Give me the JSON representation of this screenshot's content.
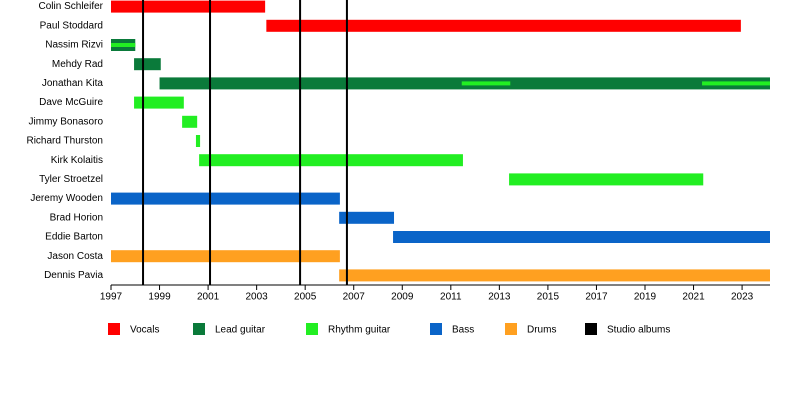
{
  "chart_data": {
    "type": "timeline",
    "categories": [
      "Colin Schleifer",
      "Paul Stoddard",
      "Nassim Rizvi",
      "Mehdy Rad",
      "Jonathan Kita",
      "Dave McGuire",
      "Jimmy Bonasoro",
      "Richard Thurston",
      "Kirk Kolaitis",
      "Tyler Stroetzel",
      "Jeremy Wooden",
      "Brad Horion",
      "Eddie Barton",
      "Jason Costa",
      "Dennis Pavia"
    ],
    "series": [
      {
        "name": "Vocals",
        "color": "#ff0000",
        "values": [
          [
            [
              1997,
              2003.35
            ]
          ],
          [
            [
              2003.4,
              2022.95
            ]
          ],
          null,
          null,
          null,
          null,
          null,
          null,
          null,
          null,
          null,
          null,
          null,
          null,
          null
        ]
      },
      {
        "name": "Lead guitar",
        "color": "#0a7a3a",
        "values": [
          null,
          null,
          [
            [
              1997,
              1998.0
            ]
          ],
          [
            [
              1997.95,
              1999.05
            ]
          ],
          [
            [
              1999.0,
              2024.15
            ]
          ],
          null,
          null,
          null,
          null,
          null,
          null,
          null,
          null,
          null,
          null
        ]
      },
      {
        "name": "Rhythm guitar",
        "color": "#22ee22",
        "values": [
          null,
          null,
          [
            [
              1997,
              1998.0
            ]
          ],
          null,
          [
            [
              2011.45,
              2013.45
            ],
            [
              2021.35,
              2024.15
            ]
          ],
          [
            [
              1997.95,
              2000.0
            ]
          ],
          [
            [
              1999.93,
              2000.55
            ]
          ],
          [
            [
              2000.5,
              2000.67
            ]
          ],
          [
            [
              2000.63,
              2011.5
            ]
          ],
          [
            [
              2013.4,
              2021.4
            ]
          ],
          null,
          null,
          null,
          null,
          null
        ]
      },
      {
        "name": "Bass",
        "color": "#0a64c8",
        "values": [
          null,
          null,
          null,
          null,
          null,
          null,
          null,
          null,
          null,
          null,
          [
            [
              1997,
              2006.43
            ]
          ],
          [
            [
              2006.4,
              2008.66
            ]
          ],
          [
            [
              2008.62,
              2024.15
            ]
          ],
          null,
          null
        ]
      },
      {
        "name": "Drums",
        "color": "#ffa020",
        "values": [
          null,
          null,
          null,
          null,
          null,
          null,
          null,
          null,
          null,
          null,
          null,
          null,
          null,
          [
            [
              1997,
              2006.43
            ]
          ],
          [
            [
              2006.4,
              2024.15
            ]
          ]
        ]
      }
    ],
    "markers": {
      "name": "Studio albums",
      "color": "#000000",
      "x": [
        1998.32,
        2001.08,
        2004.79,
        2006.72
      ]
    },
    "xlim": [
      1997,
      2024.15
    ],
    "xticks": [
      1997,
      1999,
      2001,
      2003,
      2005,
      2007,
      2009,
      2011,
      2013,
      2015,
      2017,
      2019,
      2021,
      2023
    ]
  }
}
